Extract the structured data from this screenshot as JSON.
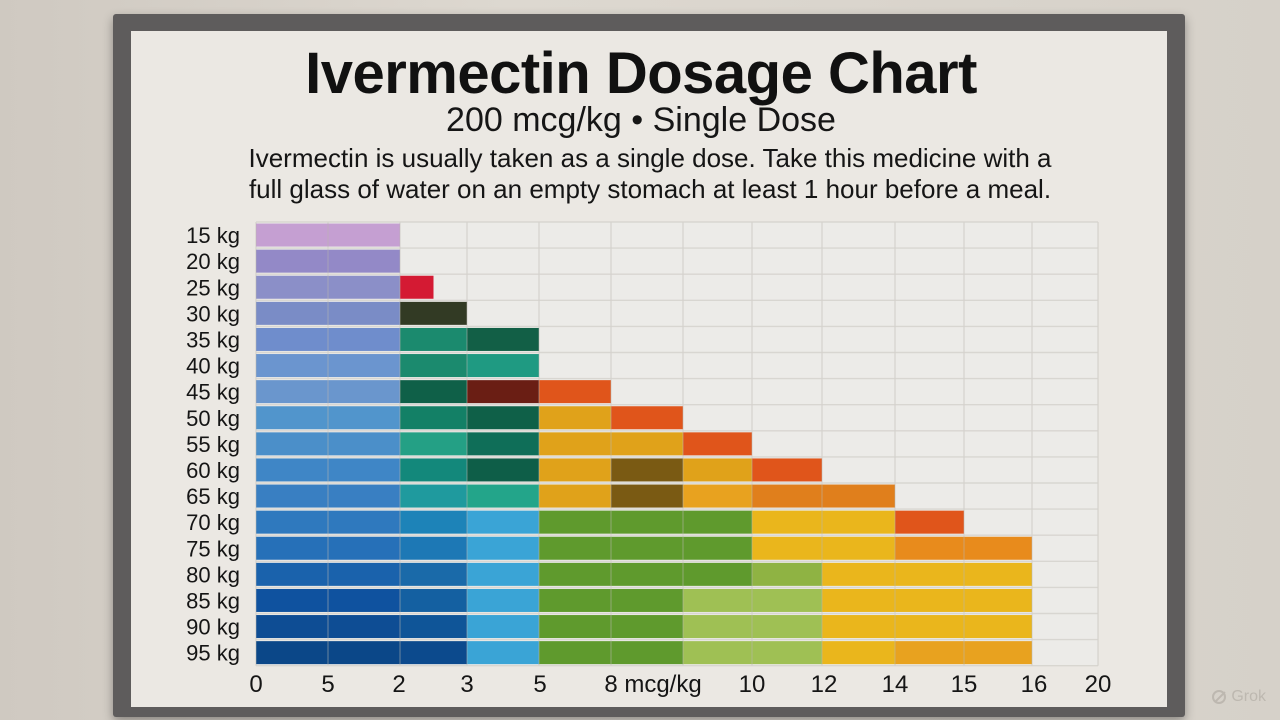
{
  "chart_data": {
    "type": "bar",
    "title": "Ivermectin Dosage Chart",
    "subtitle": "200 mcg/kg • Single Dose",
    "description": [
      "Ivermectin is usually taken as a single dose. Take this medicine with a",
      "full glass of water on an empty stomach at least 1 hour before a meal."
    ],
    "categories": [
      "15 kg",
      "20 kg",
      "25 kg",
      "30 kg",
      "35 kg",
      "40 kg",
      "45 kg",
      "50 kg",
      "55 kg",
      "60 kg",
      "65 kg",
      "70 kg",
      "75 kg",
      "80 kg",
      "85 kg",
      "90 kg",
      "95 kg"
    ],
    "x_ticks": [
      "0",
      "5",
      "2",
      "3",
      "5",
      "8 mcg/kg",
      "10",
      "12",
      "14",
      "15",
      "16",
      "20"
    ],
    "bar_extent_tick_index": [
      2,
      2,
      2.5,
      3,
      4,
      4,
      5,
      6,
      7,
      8,
      9,
      10,
      11,
      11,
      11,
      11,
      11
    ],
    "grid": true,
    "colors": {
      "row_15": "#d9a6d3",
      "row_20": "#9b8ecb",
      "red": "#d41a33",
      "dark_red": "#9c1015",
      "dark_green": "#323a24",
      "teal": "#1b8a6e",
      "deep_teal": "#0f6048",
      "orange": "#e0551b",
      "amber": "#e0a21a",
      "olive": "#7a5a13",
      "green": "#5f9a2d",
      "light_green": "#9fc054",
      "yellow": "#eab61c",
      "blue_light": "#5d92cd",
      "blue_dark": "#0e4d94",
      "sky": "#3aa4d6"
    }
  },
  "watermark": "Grok"
}
